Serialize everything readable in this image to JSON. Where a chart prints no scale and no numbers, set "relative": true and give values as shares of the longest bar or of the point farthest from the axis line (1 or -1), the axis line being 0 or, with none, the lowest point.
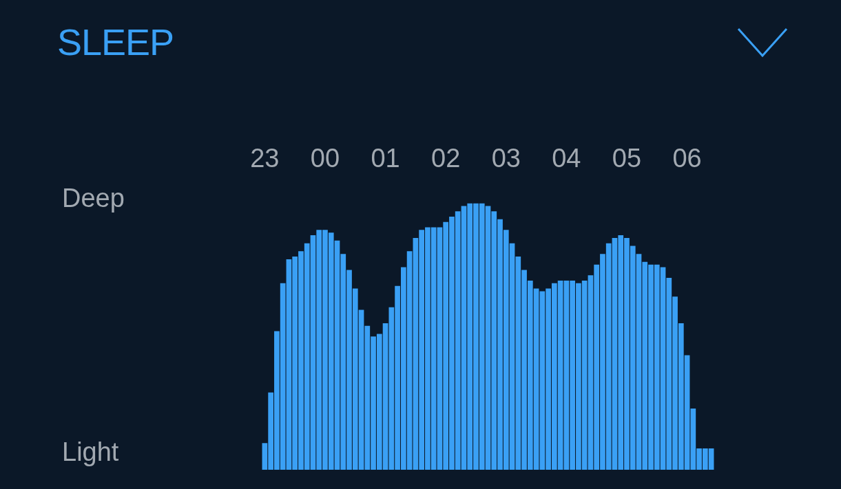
{
  "chart_data": {
    "type": "bar",
    "title": "SLEEP",
    "relative": true,
    "color": "#3aa0f5",
    "categories": [
      "23",
      null,
      null,
      null,
      null,
      null,
      null,
      null,
      null,
      null,
      "00",
      null,
      null,
      null,
      null,
      null,
      null,
      null,
      null,
      null,
      "01",
      null,
      null,
      null,
      null,
      null,
      null,
      null,
      null,
      null,
      "02",
      null,
      null,
      null,
      null,
      null,
      null,
      null,
      null,
      null,
      "03",
      null,
      null,
      null,
      null,
      null,
      null,
      null,
      null,
      null,
      "04",
      null,
      null,
      null,
      null,
      null,
      null,
      null,
      null,
      null,
      "05",
      null,
      null,
      null,
      null,
      null,
      null,
      null,
      null,
      null,
      "06",
      null,
      null,
      null,
      null
    ],
    "values": [
      0.1,
      0.29,
      0.52,
      0.7,
      0.79,
      0.8,
      0.82,
      0.85,
      0.88,
      0.9,
      0.9,
      0.89,
      0.86,
      0.81,
      0.75,
      0.68,
      0.6,
      0.54,
      0.5,
      0.51,
      0.55,
      0.61,
      0.69,
      0.76,
      0.82,
      0.87,
      0.9,
      0.91,
      0.91,
      0.91,
      0.93,
      0.95,
      0.97,
      0.99,
      1.0,
      1.0,
      1.0,
      0.99,
      0.97,
      0.94,
      0.9,
      0.85,
      0.8,
      0.75,
      0.71,
      0.68,
      0.67,
      0.68,
      0.7,
      0.71,
      0.71,
      0.71,
      0.7,
      0.71,
      0.73,
      0.77,
      0.81,
      0.85,
      0.87,
      0.88,
      0.87,
      0.84,
      0.81,
      0.78,
      0.77,
      0.77,
      0.76,
      0.72,
      0.65,
      0.55,
      0.43,
      0.23,
      0.08,
      0.08,
      0.08
    ],
    "annotations": [
      "Deep",
      "Light"
    ]
  }
}
